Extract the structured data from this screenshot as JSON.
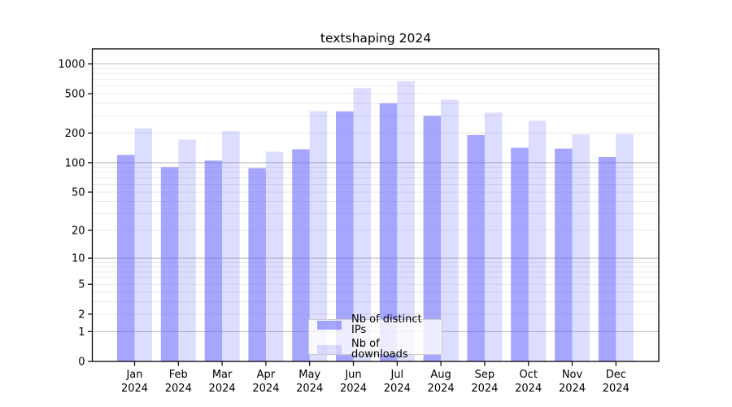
{
  "title": "textshaping 2024",
  "chart_data": {
    "type": "bar",
    "title": "textshaping 2024",
    "categories": [
      "Jan",
      "Feb",
      "Mar",
      "Apr",
      "May",
      "Jun",
      "Jul",
      "Aug",
      "Sep",
      "Oct",
      "Nov",
      "Dec"
    ],
    "x_year_label": "2024",
    "series": [
      {
        "id": "distinct-ips",
        "name": "Nb of distinct IPs",
        "color": "#6666ff",
        "alpha": 0.58,
        "values": [
          120,
          90,
          105,
          88,
          137,
          332,
          400,
          299,
          191,
          142,
          139,
          114
        ]
      },
      {
        "id": "downloads",
        "name": "Nb of downloads",
        "color": "#6666ff",
        "alpha": 0.22,
        "values": [
          224,
          172,
          209,
          129,
          333,
          570,
          670,
          434,
          322,
          267,
          194,
          195
        ]
      }
    ],
    "yscale": "log1p",
    "ylim": [
      0,
      1420
    ],
    "y_ticks": [
      0,
      1,
      2,
      5,
      10,
      20,
      50,
      100,
      200,
      500,
      1000
    ],
    "grid": {
      "horizontal": true,
      "decade_lines": [
        1,
        10,
        100,
        1000
      ],
      "minor_lines_per_decade": true
    },
    "legend_position": "inside-bottom-center",
    "colors": {
      "grid_minor": "#e9e9e9",
      "grid_decade": "#b8b8b8",
      "axis": "#000000"
    }
  }
}
